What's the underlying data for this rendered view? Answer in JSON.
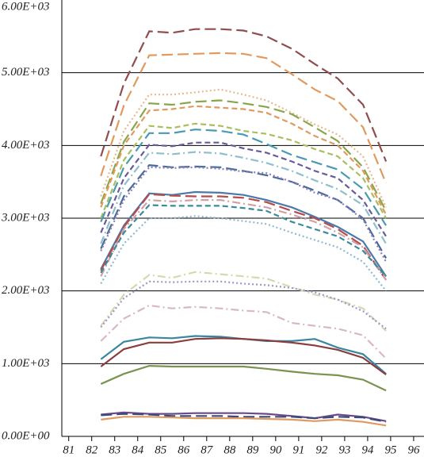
{
  "chart_data": {
    "type": "line",
    "x": [
      82.4,
      83.4,
      84.5,
      85.5,
      86.5,
      87.6,
      88.6,
      89.6,
      90.7,
      91.7,
      92.7,
      93.8,
      94.8
    ],
    "xlim": [
      80.7,
      96.45
    ],
    "xticks": [
      81,
      82,
      83,
      84,
      85,
      86,
      87,
      88,
      89,
      90,
      91,
      92,
      93,
      94,
      95,
      96
    ],
    "ylim": [
      0,
      6000
    ],
    "yticks": [
      {
        "value": 0,
        "label": "0.00E+00"
      },
      {
        "value": 1000,
        "label": "1.00E+03"
      },
      {
        "value": 2000,
        "label": "2.00E+03"
      },
      {
        "value": 3000,
        "label": "3.00E+03"
      },
      {
        "value": 4000,
        "label": "4.00E+03"
      },
      {
        "value": 5000,
        "label": "5.00E+03"
      },
      {
        "value": 6000,
        "label": "6.00E+03"
      }
    ],
    "grid": true,
    "series": [
      {
        "color": "#8e4e4e",
        "dash": "dashed",
        "values": [
          3850,
          4850,
          5570,
          5550,
          5600,
          5600,
          5580,
          5500,
          5330,
          5120,
          4920,
          4560,
          3780
        ]
      },
      {
        "color": "#e09a60",
        "dash": "dashed",
        "values": [
          3580,
          4550,
          5240,
          5250,
          5260,
          5270,
          5260,
          5200,
          4980,
          4770,
          4610,
          4250,
          3480
        ]
      },
      {
        "color": "#e8b890",
        "dash": "dotted",
        "values": [
          3300,
          4200,
          4700,
          4700,
          4730,
          4770,
          4700,
          4620,
          4450,
          4290,
          4150,
          3850,
          3150
        ]
      },
      {
        "color": "#8aa64b",
        "dash": "dashed",
        "values": [
          3200,
          4050,
          4580,
          4560,
          4600,
          4620,
          4580,
          4530,
          4430,
          4250,
          4060,
          3700,
          3100
        ]
      },
      {
        "color": "#e09a60",
        "dash": "shortdash",
        "values": [
          3150,
          4000,
          4480,
          4500,
          4540,
          4520,
          4500,
          4450,
          4300,
          4130,
          4000,
          3650,
          3050
        ]
      },
      {
        "color": "#a9bf5e",
        "dash": "shortdash",
        "values": [
          3000,
          3800,
          4270,
          4240,
          4300,
          4270,
          4200,
          4160,
          4070,
          3950,
          3850,
          3550,
          3000
        ]
      },
      {
        "color": "#4a9ab0",
        "dash": "dashed",
        "values": [
          2950,
          3700,
          4170,
          4170,
          4220,
          4200,
          4150,
          4020,
          3870,
          3770,
          3670,
          3400,
          2900
        ]
      },
      {
        "color": "#6a5a9a",
        "dash": "shortdash",
        "values": [
          2800,
          3550,
          4010,
          3990,
          4040,
          4040,
          3960,
          3900,
          3780,
          3650,
          3550,
          3250,
          2750
        ]
      },
      {
        "color": "#8fbfcc",
        "dash": "dashdot",
        "values": [
          2650,
          3450,
          3900,
          3880,
          3910,
          3890,
          3830,
          3760,
          3650,
          3520,
          3400,
          3180,
          2650
        ]
      },
      {
        "color": "#4a6a9a",
        "dash": "dashed",
        "values": [
          2580,
          3300,
          3730,
          3700,
          3710,
          3700,
          3650,
          3590,
          3500,
          3380,
          3250,
          3000,
          2450
        ]
      },
      {
        "color": "#8a80b8",
        "dash": "dotted",
        "values": [
          2550,
          3250,
          3700,
          3690,
          3700,
          3680,
          3640,
          3620,
          3500,
          3350,
          3250,
          2980,
          2400
        ]
      },
      {
        "color": "#4a7aaa",
        "dash": "solid",
        "values": [
          2300,
          2900,
          3340,
          3320,
          3360,
          3350,
          3320,
          3250,
          3150,
          3020,
          2880,
          2680,
          2200
        ]
      },
      {
        "color": "#b84a4a",
        "dash": "dashed",
        "values": [
          2280,
          2880,
          3330,
          3310,
          3300,
          3300,
          3280,
          3220,
          3100,
          3000,
          2850,
          2620,
          2150
        ]
      },
      {
        "color": "#d0a0a8",
        "dash": "dashdot",
        "values": [
          2200,
          2850,
          3250,
          3230,
          3250,
          3250,
          3200,
          3150,
          3050,
          2950,
          2800,
          2600,
          2150
        ]
      },
      {
        "color": "#3a8a9a",
        "dash": "shortdash",
        "values": [
          2250,
          2800,
          3180,
          3170,
          3170,
          3170,
          3140,
          3100,
          2950,
          2850,
          2750,
          2550,
          2200
        ]
      },
      {
        "color": "#90b8d0",
        "dash": "dotted",
        "values": [
          2100,
          2650,
          3000,
          3000,
          3030,
          3000,
          2960,
          2920,
          2800,
          2700,
          2600,
          2400,
          2000
        ]
      },
      {
        "color": "#d8d8b0",
        "dash": "dashdot",
        "values": [
          1520,
          1950,
          2220,
          2180,
          2260,
          2230,
          2200,
          2170,
          2050,
          1950,
          1880,
          1760,
          1450
        ]
      },
      {
        "color": "#9a98c8",
        "dash": "dotted",
        "values": [
          1500,
          1900,
          2130,
          2120,
          2130,
          2130,
          2100,
          2080,
          2040,
          1980,
          1880,
          1720,
          1480
        ]
      },
      {
        "color": "#d8b8c4",
        "dash": "dashdot",
        "values": [
          1310,
          1620,
          1800,
          1760,
          1780,
          1760,
          1730,
          1710,
          1560,
          1520,
          1480,
          1390,
          1070
        ]
      },
      {
        "color": "#3a86a0",
        "dash": "solid",
        "values": [
          1060,
          1300,
          1360,
          1350,
          1380,
          1370,
          1340,
          1310,
          1310,
          1340,
          1220,
          1130,
          860
        ]
      },
      {
        "color": "#8a3e3e",
        "dash": "solid",
        "values": [
          960,
          1200,
          1290,
          1290,
          1340,
          1350,
          1340,
          1320,
          1290,
          1250,
          1190,
          1080,
          850
        ]
      },
      {
        "color": "#7a9450",
        "dash": "solid",
        "values": [
          720,
          860,
          970,
          960,
          960,
          960,
          960,
          930,
          890,
          860,
          840,
          780,
          630
        ]
      },
      {
        "color": "#6a4a8a",
        "dash": "solid",
        "values": [
          300,
          330,
          310,
          310,
          320,
          320,
          320,
          310,
          280,
          250,
          300,
          270,
          210
        ]
      },
      {
        "color": "#3a4a7a",
        "dash": "dashed",
        "values": [
          290,
          310,
          300,
          280,
          280,
          280,
          270,
          270,
          270,
          250,
          270,
          260,
          200
        ]
      },
      {
        "color": "#e09a60",
        "dash": "solid",
        "values": [
          230,
          270,
          270,
          260,
          250,
          250,
          250,
          240,
          230,
          210,
          230,
          200,
          150
        ]
      }
    ]
  }
}
